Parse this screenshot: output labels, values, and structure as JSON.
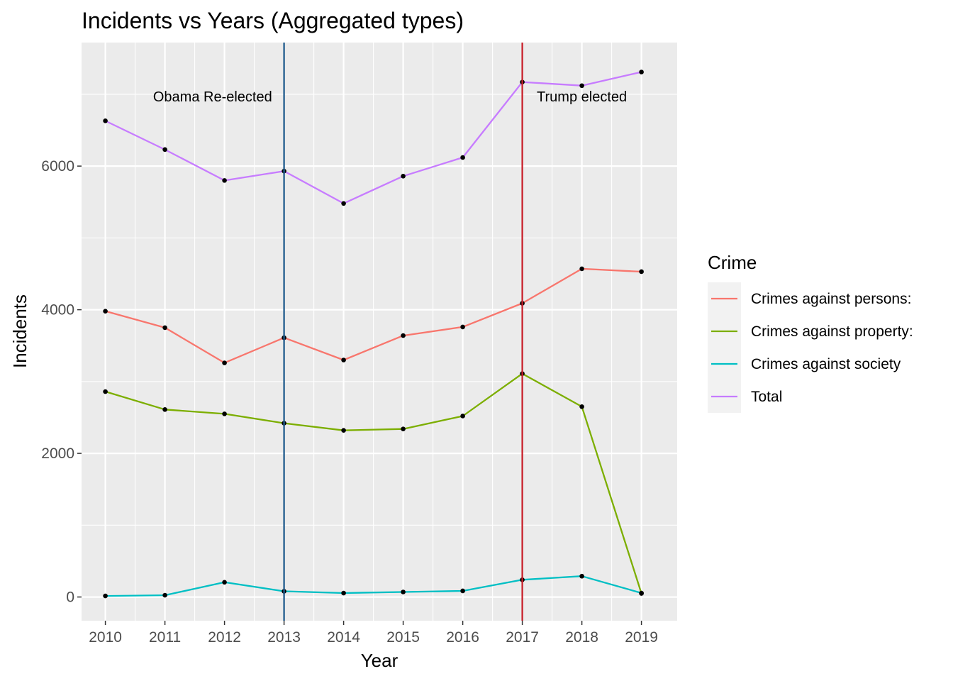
{
  "chart_data": {
    "type": "line",
    "title": "Incidents vs Years (Aggregated types)",
    "xlabel": "Year",
    "ylabel": "Incidents",
    "x": [
      2010,
      2011,
      2012,
      2013,
      2014,
      2015,
      2016,
      2017,
      2018,
      2019
    ],
    "xlim": [
      2009.6,
      2019.6
    ],
    "ylim": [
      -330,
      7720
    ],
    "y_ticks": [
      0,
      2000,
      4000,
      6000
    ],
    "y_minor_ticks": [
      1000,
      3000,
      5000,
      7000
    ],
    "grid": true,
    "legend": {
      "title": "Crime",
      "position": "right"
    },
    "series": [
      {
        "name": "Crimes against persons:",
        "color": "#F8766D",
        "values": [
          3980,
          3750,
          3260,
          3610,
          3300,
          3640,
          3760,
          4090,
          4570,
          4530
        ]
      },
      {
        "name": "Crimes against property:",
        "color": "#7CAE00",
        "values": [
          2860,
          2610,
          2550,
          2420,
          2320,
          2340,
          2520,
          3110,
          2650,
          50
        ]
      },
      {
        "name": "Crimes against society",
        "color": "#00BFC4",
        "values": [
          15,
          25,
          205,
          80,
          55,
          70,
          85,
          240,
          290,
          55
        ]
      },
      {
        "name": "Total",
        "color": "#C77CFF",
        "values": [
          6630,
          6230,
          5800,
          5930,
          5480,
          5860,
          6120,
          7170,
          7120,
          7310
        ]
      }
    ],
    "vertical_lines": [
      {
        "x": 2013,
        "color": "#1f5a8c"
      },
      {
        "x": 2017,
        "color": "#c8202a"
      }
    ],
    "annotations": [
      {
        "text": "Obama Re-elected",
        "x": 2011.8,
        "y": 6970
      },
      {
        "text": "Trump elected",
        "x": 2018.0,
        "y": 6970
      }
    ]
  }
}
